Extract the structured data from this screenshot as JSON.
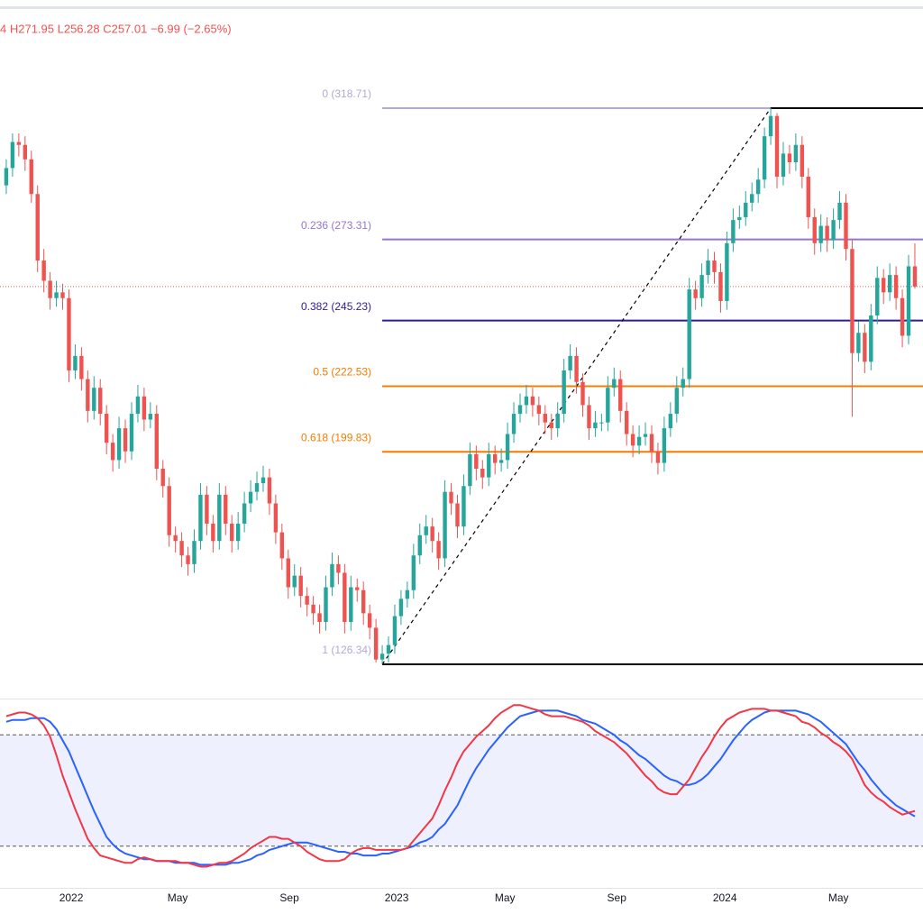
{
  "chart_data": [
    {
      "type": "candlestick",
      "legend_text": "4 H271.95 L256.28 C257.01 −6.99 (−2.65%)",
      "xlim": [
        -1,
        146.3
      ],
      "xticks": [
        {
          "value": 10.37,
          "label": "2022"
        },
        {
          "value": 27.35,
          "label": "May"
        },
        {
          "value": 45.19,
          "label": "Sep"
        },
        {
          "value": 62.31,
          "label": "2023"
        },
        {
          "value": 79.58,
          "label": "May"
        },
        {
          "value": 97.42,
          "label": "Sep"
        },
        {
          "value": 114.68,
          "label": "2024"
        },
        {
          "value": 132.81,
          "label": "May"
        }
      ],
      "ylim": [
        114.5,
        353
      ],
      "up_color": "#26a69a",
      "down_color": "#ef5350",
      "fib_levels": [
        {
          "label": "0 (318.71)",
          "price": 318.71,
          "color": "#b3a8d9"
        },
        {
          "label": "0.236 (273.31)",
          "price": 273.31,
          "color": "#9575cd"
        },
        {
          "label": "0.382 (245.23)",
          "price": 245.23,
          "color": "#311b92"
        },
        {
          "label": "0.5 (222.53)",
          "price": 222.53,
          "color": "#f57c00"
        },
        {
          "label": "0.618 (199.83)",
          "price": 199.83,
          "color": "#f57c00"
        },
        {
          "label": "1 (126.34)",
          "price": 126.34,
          "color": "#b3a8d9"
        }
      ],
      "candles": [
        [
          292,
          301,
          289,
          298
        ],
        [
          298,
          310,
          295,
          307
        ],
        [
          307,
          310,
          302,
          306
        ],
        [
          306,
          309,
          297,
          301
        ],
        [
          301,
          304,
          286,
          289
        ],
        [
          289,
          292,
          262,
          266
        ],
        [
          266,
          270,
          255,
          259
        ],
        [
          259,
          262,
          249,
          253
        ],
        [
          253,
          259,
          250,
          255
        ],
        [
          255,
          258,
          249,
          253
        ],
        [
          253,
          256,
          224,
          228
        ],
        [
          228,
          237,
          225,
          233
        ],
        [
          233,
          236,
          221,
          225
        ],
        [
          225,
          228,
          210,
          214
        ],
        [
          214,
          226,
          211,
          222
        ],
        [
          222,
          225,
          209,
          213
        ],
        [
          213,
          216,
          199,
          203
        ],
        [
          203,
          206,
          193,
          197
        ],
        [
          197,
          212,
          194,
          208
        ],
        [
          208,
          211,
          196,
          200
        ],
        [
          200,
          217,
          197,
          213
        ],
        [
          213,
          223,
          210,
          219
        ],
        [
          219,
          222,
          207,
          211
        ],
        [
          211,
          217,
          208,
          213
        ],
        [
          213,
          216,
          190,
          194
        ],
        [
          194,
          197,
          184,
          188
        ],
        [
          188,
          191,
          167,
          171
        ],
        [
          171,
          174,
          165,
          169
        ],
        [
          169,
          172,
          160,
          164
        ],
        [
          164,
          167,
          157,
          161
        ],
        [
          161,
          173,
          158,
          169
        ],
        [
          169,
          189,
          166,
          185
        ],
        [
          185,
          188,
          171,
          175
        ],
        [
          175,
          178,
          165,
          169
        ],
        [
          169,
          189,
          166,
          185
        ],
        [
          185,
          188,
          171,
          175
        ],
        [
          175,
          178,
          165,
          169
        ],
        [
          169,
          179,
          166,
          175
        ],
        [
          175,
          186,
          172,
          182
        ],
        [
          182,
          190,
          179,
          186
        ],
        [
          186,
          193,
          183,
          189
        ],
        [
          189,
          195,
          186,
          191
        ],
        [
          191,
          194,
          178,
          182
        ],
        [
          182,
          185,
          168,
          172
        ],
        [
          172,
          175,
          159,
          163
        ],
        [
          163,
          166,
          149,
          153
        ],
        [
          153,
          161,
          150,
          157
        ],
        [
          157,
          160,
          146,
          150
        ],
        [
          150,
          153,
          143,
          147
        ],
        [
          147,
          150,
          140,
          144
        ],
        [
          144,
          147,
          137,
          141
        ],
        [
          141,
          157,
          138,
          153
        ],
        [
          153,
          165,
          150,
          161
        ],
        [
          161,
          164,
          154,
          158
        ],
        [
          158,
          161,
          137,
          141
        ],
        [
          141,
          157,
          138,
          153
        ],
        [
          153,
          156,
          148,
          152
        ],
        [
          152,
          155,
          140,
          144
        ],
        [
          144,
          147,
          135,
          139
        ],
        [
          139,
          142,
          127,
          128
        ],
        [
          128,
          133,
          126.34,
          130
        ],
        [
          130,
          136,
          127,
          133
        ],
        [
          133,
          147,
          130,
          143
        ],
        [
          143,
          152,
          140,
          149
        ],
        [
          149,
          155,
          146,
          152
        ],
        [
          152,
          168,
          149,
          164
        ],
        [
          164,
          175,
          161,
          171
        ],
        [
          171,
          178,
          168,
          174
        ],
        [
          174,
          177,
          165,
          169
        ],
        [
          169,
          172,
          159,
          163
        ],
        [
          163,
          190,
          160,
          186
        ],
        [
          186,
          189,
          178,
          182
        ],
        [
          182,
          185,
          170,
          174
        ],
        [
          174,
          192,
          171,
          188
        ],
        [
          188,
          203,
          185,
          199
        ],
        [
          199,
          202,
          190,
          194
        ],
        [
          194,
          197,
          187,
          191
        ],
        [
          191,
          203,
          188,
          199
        ],
        [
          199,
          202,
          192,
          196
        ],
        [
          196,
          201,
          193,
          197
        ],
        [
          197,
          210,
          194,
          206
        ],
        [
          206,
          217,
          203,
          213
        ],
        [
          213,
          220,
          210,
          216
        ],
        [
          216,
          223,
          213,
          219
        ],
        [
          219,
          222,
          212,
          216
        ],
        [
          216,
          219,
          209,
          213
        ],
        [
          213,
          216,
          206,
          210
        ],
        [
          210,
          213,
          204,
          208
        ],
        [
          208,
          217,
          205,
          213
        ],
        [
          213,
          232,
          210,
          228
        ],
        [
          228,
          237,
          225,
          233
        ],
        [
          233,
          236,
          220,
          224
        ],
        [
          224,
          227,
          212,
          216
        ],
        [
          216,
          219,
          204,
          208
        ],
        [
          208,
          214,
          205,
          210
        ],
        [
          210,
          213,
          207,
          210
        ],
        [
          210,
          226,
          207,
          222
        ],
        [
          222,
          229,
          219,
          225
        ],
        [
          225,
          228,
          210,
          214
        ],
        [
          214,
          217,
          202,
          206
        ],
        [
          206,
          209,
          198,
          202
        ],
        [
          202,
          209,
          199,
          205
        ],
        [
          205,
          210,
          202,
          206
        ],
        [
          206,
          209,
          196,
          200
        ],
        [
          200,
          203,
          192,
          196
        ],
        [
          196,
          212,
          193,
          208
        ],
        [
          208,
          217,
          205,
          213
        ],
        [
          213,
          226,
          210,
          222
        ],
        [
          222,
          229,
          219,
          225
        ],
        [
          225,
          260,
          222,
          256
        ],
        [
          256,
          259,
          249,
          253
        ],
        [
          253,
          265,
          250,
          261
        ],
        [
          261,
          270,
          258,
          266
        ],
        [
          266,
          269,
          258,
          262
        ],
        [
          262,
          265,
          248,
          252
        ],
        [
          252,
          276,
          249,
          272
        ],
        [
          272,
          284,
          269,
          280
        ],
        [
          280,
          285,
          277,
          281
        ],
        [
          281,
          290,
          278,
          286
        ],
        [
          286,
          293,
          283,
          289
        ],
        [
          289,
          298,
          286,
          294
        ],
        [
          294,
          312,
          291,
          309
        ],
        [
          309,
          318.71,
          306,
          316
        ],
        [
          316,
          317,
          291,
          295
        ],
        [
          295,
          307,
          292,
          303
        ],
        [
          303,
          306,
          296,
          300
        ],
        [
          300,
          310,
          297,
          306
        ],
        [
          306,
          309,
          291,
          295
        ],
        [
          295,
          298,
          277,
          281
        ],
        [
          281,
          284,
          268,
          272
        ],
        [
          272,
          282,
          269,
          278
        ],
        [
          278,
          281,
          269,
          273
        ],
        [
          273,
          284,
          270,
          280
        ],
        [
          280,
          290,
          277,
          286
        ],
        [
          286,
          289,
          266,
          270
        ],
        [
          270,
          273,
          212,
          234
        ],
        [
          234,
          245,
          231,
          241
        ],
        [
          241,
          244,
          227,
          231
        ],
        [
          231,
          251,
          228,
          247
        ],
        [
          247,
          264,
          244,
          260
        ],
        [
          260,
          263,
          251,
          255
        ],
        [
          255,
          265,
          252,
          261
        ],
        [
          261,
          264,
          249,
          253
        ],
        [
          253,
          256,
          236,
          240
        ],
        [
          240,
          268,
          237,
          264
        ],
        [
          264,
          271.95,
          256.28,
          257.01
        ]
      ]
    },
    {
      "type": "line",
      "ylim": [
        0,
        100
      ],
      "levels": [
        20,
        80
      ],
      "band_color": "#eef0fd",
      "series": [
        {
          "color": "#f23645",
          "values": [
            90,
            91,
            92,
            92,
            91,
            89,
            85,
            79,
            69,
            58,
            49,
            40,
            32,
            24,
            19,
            15,
            14,
            13,
            12,
            11,
            11,
            13,
            14,
            13,
            12,
            12,
            12,
            12,
            11,
            11,
            10,
            9,
            9,
            10,
            11,
            11,
            12,
            14,
            16,
            19,
            21,
            23,
            25,
            25,
            24,
            24,
            22,
            20,
            17,
            15,
            13,
            12,
            12,
            12,
            13,
            16,
            18,
            19,
            19,
            18,
            18,
            18,
            18,
            18,
            19,
            23,
            27,
            31,
            35,
            42,
            50,
            57,
            65,
            71,
            75,
            79,
            82,
            85,
            89,
            92,
            94,
            96,
            96,
            95,
            94,
            93,
            91,
            90,
            90,
            90,
            89,
            88,
            87,
            85,
            82,
            80,
            78,
            76,
            73,
            70,
            66,
            62,
            58,
            55,
            51,
            49,
            48,
            48,
            52,
            56,
            62,
            68,
            73,
            79,
            84,
            88,
            90,
            92,
            93,
            94,
            94,
            94,
            93,
            93,
            92,
            91,
            90,
            87,
            86,
            84,
            81,
            79,
            76,
            74,
            71,
            67,
            60,
            53,
            49,
            46,
            44,
            41,
            39,
            37,
            38,
            39
          ]
        },
        {
          "color": "#2962ff",
          "values": [
            87,
            88,
            88,
            88,
            89,
            89,
            89,
            87,
            83,
            77,
            71,
            63,
            55,
            47,
            39,
            32,
            25,
            21,
            18,
            16,
            15,
            14,
            13,
            13,
            12,
            12,
            12,
            11,
            11,
            11,
            11,
            10,
            10,
            10,
            10,
            10,
            11,
            11,
            12,
            13,
            15,
            16,
            18,
            19,
            20,
            21,
            22,
            22,
            22,
            21,
            20,
            19,
            18,
            17,
            17,
            16,
            16,
            15,
            15,
            15,
            16,
            16,
            17,
            18,
            19,
            20,
            22,
            23,
            25,
            29,
            32,
            37,
            42,
            49,
            56,
            62,
            67,
            72,
            76,
            80,
            84,
            87,
            90,
            91,
            92,
            93,
            93,
            93,
            93,
            92,
            91,
            90,
            88,
            87,
            86,
            84,
            82,
            80,
            77,
            75,
            72,
            69,
            67,
            64,
            61,
            58,
            56,
            55,
            53,
            53,
            54,
            56,
            59,
            63,
            67,
            72,
            77,
            81,
            85,
            88,
            90,
            92,
            93,
            93,
            93,
            93,
            93,
            92,
            91,
            89,
            87,
            84,
            81,
            78,
            75,
            70,
            65,
            61,
            56,
            52,
            48,
            45,
            42,
            40,
            38,
            36
          ]
        }
      ]
    }
  ]
}
